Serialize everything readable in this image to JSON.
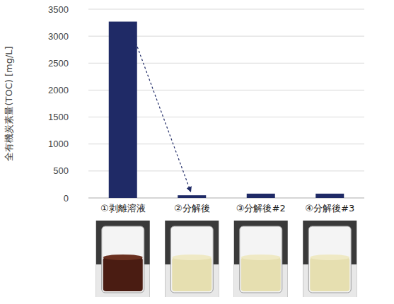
{
  "chart_data": {
    "type": "bar",
    "y_label": "全有機炭素量(TOC) [mg/L]",
    "categories": [
      "①剥離溶液",
      "②分解後",
      "③分解後#2",
      "④分解後#3"
    ],
    "values": [
      3270,
      50,
      80,
      80
    ],
    "color": "#1f2a66",
    "ylim": [
      0,
      3500
    ],
    "yticks": [
      0,
      500,
      1000,
      1500,
      2000,
      2500,
      3000,
      3500
    ],
    "grid": true
  }
}
